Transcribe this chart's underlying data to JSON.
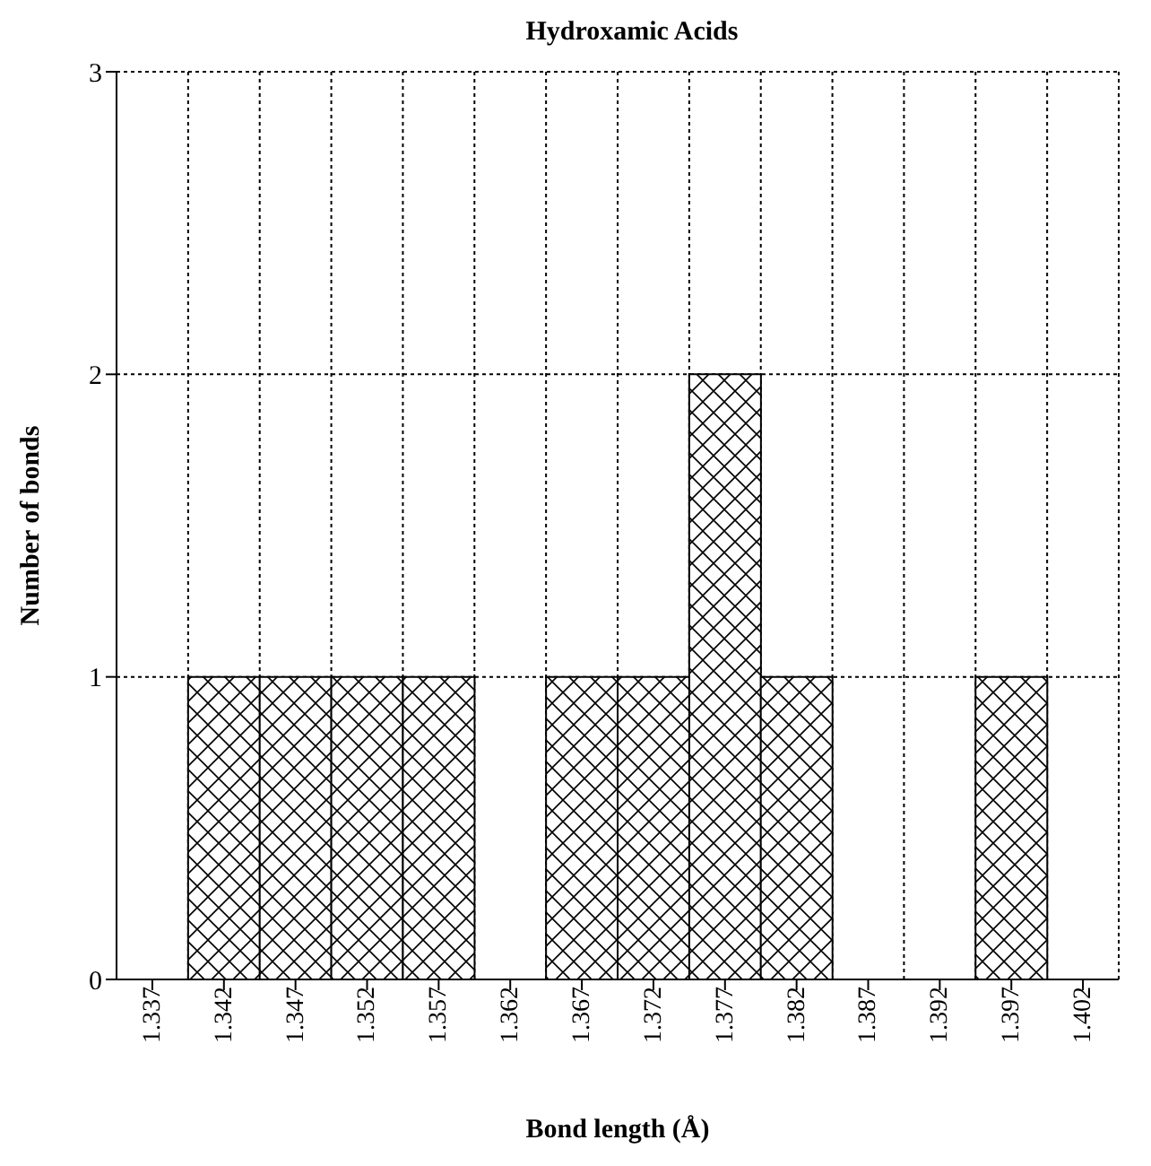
{
  "chart_data": {
    "type": "bar",
    "title": "Hydroxamic Acids",
    "xlabel": "Bond length (Å)",
    "ylabel": "Number of bonds",
    "categories": [
      "1.337",
      "1.342",
      "1.347",
      "1.352",
      "1.357",
      "1.362",
      "1.367",
      "1.372",
      "1.377",
      "1.382",
      "1.387",
      "1.392",
      "1.397",
      "1.402"
    ],
    "values": [
      0,
      1,
      1,
      1,
      1,
      0,
      1,
      1,
      2,
      1,
      0,
      0,
      1,
      0
    ],
    "color": "#000000",
    "ylim": [
      0,
      3
    ],
    "yticks": [
      0,
      1,
      2,
      3
    ],
    "grid": true
  }
}
